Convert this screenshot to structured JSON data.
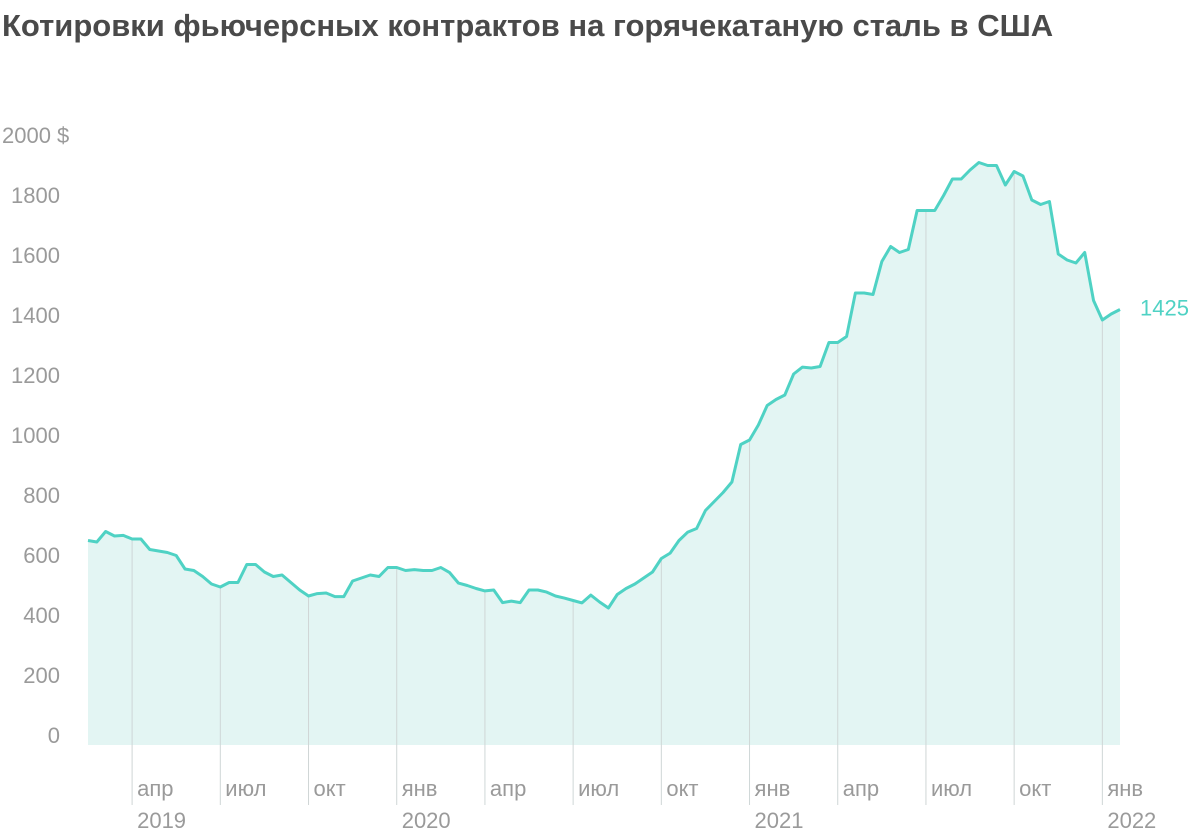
{
  "chart_data": {
    "type": "area",
    "title": "Котировки фьючерсных контрактов на горячекатаную сталь в США",
    "categories": [
      null,
      null,
      null,
      null,
      null,
      "апр",
      null,
      null,
      null,
      null,
      null,
      null,
      null,
      null,
      null,
      "июл",
      null,
      null,
      null,
      null,
      null,
      null,
      null,
      null,
      null,
      "окт",
      null,
      null,
      null,
      null,
      null,
      null,
      null,
      null,
      null,
      "янв",
      null,
      null,
      null,
      null,
      null,
      null,
      null,
      null,
      null,
      "апр",
      null,
      null,
      null,
      null,
      null,
      null,
      null,
      null,
      null,
      "июл",
      null,
      null,
      null,
      null,
      null,
      null,
      null,
      null,
      null,
      "окт",
      null,
      null,
      null,
      null,
      null,
      null,
      null,
      null,
      null,
      "янв",
      null,
      null,
      null,
      null,
      null,
      null,
      null,
      null,
      null,
      "апр",
      null,
      null,
      null,
      null,
      null,
      null,
      null,
      null,
      null,
      "июл",
      null,
      null,
      null,
      null,
      null,
      null,
      null,
      null,
      null,
      "окт",
      null,
      null,
      null,
      null,
      null,
      null,
      null,
      null,
      null,
      "янв",
      null,
      null
    ],
    "category_years": [
      null,
      null,
      null,
      null,
      null,
      "2019",
      null,
      null,
      null,
      null,
      null,
      null,
      null,
      null,
      null,
      null,
      null,
      null,
      null,
      null,
      null,
      null,
      null,
      null,
      null,
      null,
      null,
      null,
      null,
      null,
      null,
      null,
      null,
      null,
      null,
      "2020",
      null,
      null,
      null,
      null,
      null,
      null,
      null,
      null,
      null,
      null,
      null,
      null,
      null,
      null,
      null,
      null,
      null,
      null,
      null,
      null,
      null,
      null,
      null,
      null,
      null,
      null,
      null,
      null,
      null,
      null,
      null,
      null,
      null,
      null,
      null,
      null,
      null,
      null,
      null,
      "2021",
      null,
      null,
      null,
      null,
      null,
      null,
      null,
      null,
      null,
      null,
      null,
      null,
      null,
      null,
      null,
      null,
      null,
      null,
      null,
      null,
      null,
      null,
      null,
      null,
      null,
      null,
      null,
      null,
      null,
      null,
      null,
      null,
      null,
      null,
      null,
      null,
      null,
      null,
      null,
      "2022",
      null,
      null
    ],
    "series": [
      {
        "color": "#4fd2c4",
        "fill": "#e3f5f3",
        "values": [
          655,
          650,
          685,
          670,
          672,
          660,
          660,
          625,
          620,
          615,
          605,
          560,
          555,
          535,
          510,
          500,
          515,
          515,
          575,
          575,
          550,
          535,
          540,
          515,
          490,
          470,
          478,
          480,
          468,
          468,
          520,
          530,
          540,
          535,
          565,
          565,
          555,
          558,
          555,
          555,
          565,
          548,
          513,
          505,
          495,
          487,
          490,
          448,
          453,
          448,
          490,
          490,
          483,
          470,
          463,
          455,
          447,
          473,
          450,
          430,
          475,
          495,
          510,
          530,
          550,
          595,
          613,
          655,
          683,
          695,
          755,
          785,
          815,
          850,
          975,
          990,
          1040,
          1105,
          1125,
          1140,
          1210,
          1233,
          1230,
          1235,
          1315,
          1315,
          1335,
          1480,
          1480,
          1475,
          1585,
          1635,
          1615,
          1625,
          1755,
          1755,
          1755,
          1805,
          1860,
          1860,
          1890,
          1915,
          1905,
          1905,
          1840,
          1885,
          1870,
          1790,
          1775,
          1785,
          1610,
          1590,
          1580,
          1615,
          1455,
          1390,
          1410,
          1425
        ]
      }
    ],
    "ylim": [
      0,
      2000
    ],
    "yticks": [
      0,
      200,
      400,
      600,
      800,
      1000,
      1200,
      1400,
      1600,
      1800,
      {
        "value": 2000,
        "label": "2000 $"
      }
    ]
  }
}
